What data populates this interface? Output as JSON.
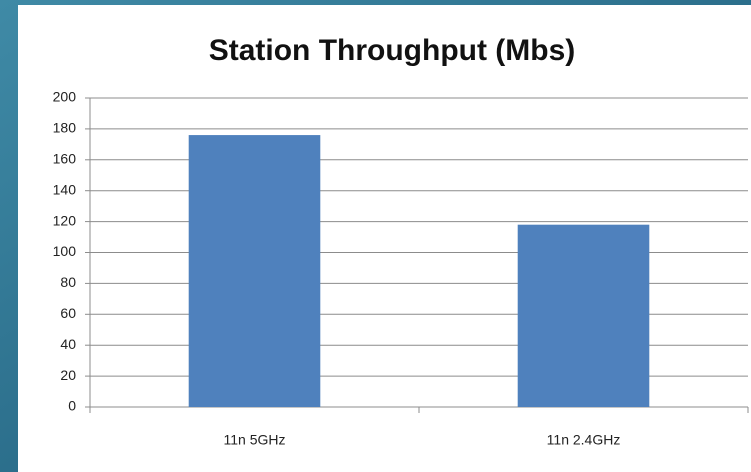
{
  "chart_data": {
    "type": "bar",
    "title": "Station Throughput (Mbs)",
    "categories": [
      "11n 5GHz",
      "11n 2.4GHz"
    ],
    "values": [
      176,
      118
    ],
    "color": "#4f81bd",
    "ylim": [
      0,
      200
    ],
    "yticks": [
      0,
      20,
      40,
      60,
      80,
      100,
      120,
      140,
      160,
      180,
      200
    ],
    "grid": true
  }
}
